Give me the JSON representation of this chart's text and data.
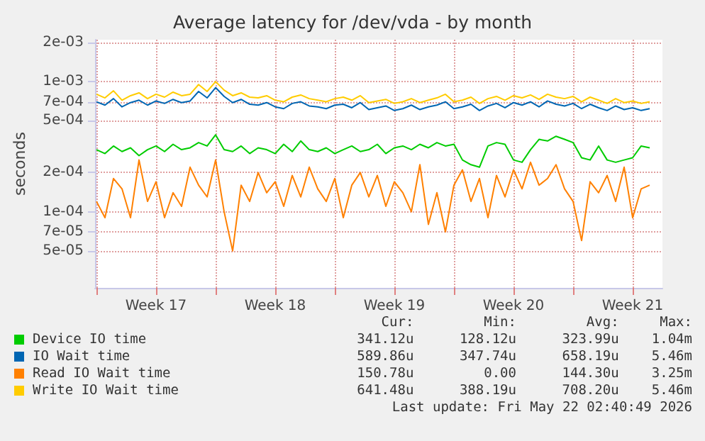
{
  "chart_data": {
    "type": "line",
    "title": "Average latency for /dev/vda - by month",
    "ylabel": "seconds",
    "x": [
      "2026-04-20T00:00",
      "2026-04-20T12:00",
      "2026-04-21T00:00",
      "2026-04-21T12:00",
      "2026-04-22T00:00",
      "2026-04-22T12:00",
      "2026-04-23T00:00",
      "2026-04-23T12:00",
      "2026-04-24T00:00",
      "2026-04-24T12:00",
      "2026-04-25T00:00",
      "2026-04-25T12:00",
      "2026-04-26T00:00",
      "2026-04-26T12:00",
      "2026-04-27T00:00",
      "2026-04-27T12:00",
      "2026-04-28T00:00",
      "2026-04-28T12:00",
      "2026-04-29T00:00",
      "2026-04-29T12:00",
      "2026-04-30T00:00",
      "2026-04-30T12:00",
      "2026-05-01T00:00",
      "2026-05-01T12:00",
      "2026-05-02T00:00",
      "2026-05-02T12:00",
      "2026-05-03T00:00",
      "2026-05-03T12:00",
      "2026-05-04T00:00",
      "2026-05-04T12:00",
      "2026-05-05T00:00",
      "2026-05-05T12:00",
      "2026-05-06T00:00",
      "2026-05-06T12:00",
      "2026-05-07T00:00",
      "2026-05-07T12:00",
      "2026-05-08T00:00",
      "2026-05-08T12:00",
      "2026-05-09T00:00",
      "2026-05-09T12:00",
      "2026-05-10T00:00",
      "2026-05-10T12:00",
      "2026-05-11T00:00",
      "2026-05-11T12:00",
      "2026-05-12T00:00",
      "2026-05-12T12:00",
      "2026-05-13T00:00",
      "2026-05-13T12:00",
      "2026-05-14T00:00",
      "2026-05-14T12:00",
      "2026-05-15T00:00",
      "2026-05-15T12:00",
      "2026-05-16T00:00",
      "2026-05-16T12:00",
      "2026-05-17T00:00",
      "2026-05-17T12:00",
      "2026-05-18T00:00",
      "2026-05-18T12:00",
      "2026-05-19T00:00",
      "2026-05-19T12:00",
      "2026-05-20T00:00",
      "2026-05-20T12:00",
      "2026-05-21T00:00",
      "2026-05-21T12:00",
      "2026-05-22T00:00",
      "2026-05-22T12:00"
    ],
    "series": [
      {
        "name": "Device IO time",
        "color": "#00cc00",
        "values": [
          0.0003,
          0.00028,
          0.00032,
          0.00029,
          0.00031,
          0.00027,
          0.0003,
          0.00032,
          0.00029,
          0.00033,
          0.0003,
          0.00031,
          0.00034,
          0.00032,
          0.00039,
          0.0003,
          0.00029,
          0.00032,
          0.00028,
          0.00031,
          0.0003,
          0.00028,
          0.00033,
          0.00029,
          0.00035,
          0.0003,
          0.00029,
          0.00031,
          0.00028,
          0.0003,
          0.00032,
          0.00029,
          0.0003,
          0.00033,
          0.00028,
          0.00031,
          0.00032,
          0.0003,
          0.00033,
          0.00031,
          0.00034,
          0.00032,
          0.00033,
          0.00025,
          0.00023,
          0.00022,
          0.00032,
          0.00034,
          0.00033,
          0.00025,
          0.00024,
          0.0003,
          0.00036,
          0.00035,
          0.00038,
          0.00036,
          0.00034,
          0.00026,
          0.00025,
          0.00032,
          0.00025,
          0.00024,
          0.00025,
          0.00026,
          0.00032,
          0.00031
        ]
      },
      {
        "name": "IO Wait time",
        "color": "#0066b3",
        "values": [
          0.0007,
          0.00066,
          0.00074,
          0.00064,
          0.00069,
          0.00072,
          0.00066,
          0.00071,
          0.00068,
          0.00073,
          0.00069,
          0.00071,
          0.00084,
          0.00075,
          0.0009,
          0.00077,
          0.00069,
          0.00073,
          0.00067,
          0.00066,
          0.00069,
          0.00064,
          0.00062,
          0.00068,
          0.0007,
          0.00065,
          0.00064,
          0.00062,
          0.00066,
          0.00067,
          0.00063,
          0.00069,
          0.00061,
          0.00063,
          0.00065,
          0.0006,
          0.00062,
          0.00066,
          0.00061,
          0.00064,
          0.00066,
          0.0007,
          0.00062,
          0.00064,
          0.00067,
          0.0006,
          0.00065,
          0.00068,
          0.00063,
          0.00069,
          0.00066,
          0.0007,
          0.00064,
          0.00071,
          0.00067,
          0.00065,
          0.00068,
          0.00062,
          0.00067,
          0.00063,
          0.0006,
          0.00065,
          0.00061,
          0.00063,
          0.0006,
          0.00062
        ]
      },
      {
        "name": "Read IO Wait time",
        "color": "#ff8000",
        "values": [
          0.00012,
          9e-05,
          0.00018,
          0.00015,
          9e-05,
          0.00025,
          0.00012,
          0.00017,
          9e-05,
          0.00014,
          0.00011,
          0.00022,
          0.00016,
          0.00013,
          0.00025,
          0.0001,
          5e-05,
          0.00016,
          0.00012,
          0.0002,
          0.00014,
          0.00017,
          0.00011,
          0.00019,
          0.00013,
          0.00022,
          0.00015,
          0.00012,
          0.00018,
          9e-05,
          0.00016,
          0.0002,
          0.00013,
          0.00019,
          0.00011,
          0.00017,
          0.00014,
          0.0001,
          0.00023,
          8e-05,
          0.00014,
          7e-05,
          0.00016,
          0.00021,
          0.00012,
          0.00018,
          9e-05,
          0.00019,
          0.00013,
          0.00021,
          0.00015,
          0.00024,
          0.00016,
          0.00018,
          0.00023,
          0.00015,
          0.00012,
          6e-05,
          0.00017,
          0.00014,
          0.00019,
          0.00012,
          0.00022,
          9e-05,
          0.00015,
          0.00016
        ]
      },
      {
        "name": "Write IO Wait time",
        "color": "#ffcc00",
        "values": [
          0.0008,
          0.00075,
          0.00085,
          0.00072,
          0.00078,
          0.00082,
          0.00074,
          0.0008,
          0.00076,
          0.00083,
          0.00078,
          0.0008,
          0.00095,
          0.00084,
          0.001,
          0.00086,
          0.00078,
          0.00082,
          0.00076,
          0.00075,
          0.00078,
          0.00072,
          0.0007,
          0.00076,
          0.00079,
          0.00074,
          0.00072,
          0.0007,
          0.00074,
          0.00076,
          0.00072,
          0.00078,
          0.00069,
          0.00071,
          0.00073,
          0.00068,
          0.0007,
          0.00074,
          0.00069,
          0.00072,
          0.00075,
          0.0008,
          0.0007,
          0.00072,
          0.00076,
          0.00068,
          0.00074,
          0.00077,
          0.00072,
          0.00078,
          0.00075,
          0.00079,
          0.00073,
          0.0008,
          0.00076,
          0.00074,
          0.00077,
          0.0007,
          0.00076,
          0.00072,
          0.00068,
          0.00074,
          0.00069,
          0.00071,
          0.00068,
          0.0007
        ]
      }
    ],
    "xlim": [
      "2026-04-19T22:00",
      "2026-05-23T06:00"
    ],
    "xticks": [
      {
        "value": "2026-04-20T00:00",
        "label": null
      },
      {
        "value": "2026-04-23T12:00",
        "label": "Week 17"
      },
      {
        "value": "2026-04-27T00:00",
        "label": null
      },
      {
        "value": "2026-04-30T12:00",
        "label": "Week 18"
      },
      {
        "value": "2026-05-04T00:00",
        "label": null
      },
      {
        "value": "2026-05-07T12:00",
        "label": "Week 19"
      },
      {
        "value": "2026-05-11T00:00",
        "label": null
      },
      {
        "value": "2026-05-14T12:00",
        "label": "Week 20"
      },
      {
        "value": "2026-05-18T00:00",
        "label": null
      },
      {
        "value": "2026-05-21T12:00",
        "label": "Week 21"
      }
    ],
    "ylim": [
      2.6e-05,
      0.0021
    ],
    "log": "y",
    "yticks": [
      {
        "value": 5e-05,
        "label": "5e-05"
      },
      {
        "value": 7e-05,
        "label": "7e-05"
      },
      {
        "value": 0.0001,
        "label": "1e-04"
      },
      {
        "value": 0.0002,
        "label": "2e-04"
      },
      {
        "value": 0.0005,
        "label": "5e-04"
      },
      {
        "value": 0.0007,
        "label": "7e-04"
      },
      {
        "value": 0.001,
        "label": "1e-03"
      },
      {
        "value": 0.002,
        "label": "2e-03"
      }
    ],
    "grid": true,
    "legend": "bottom",
    "marker": "none",
    "line_style": "solid",
    "annotations": [
      "Cur:",
      "Min:",
      "Avg:",
      "Max:",
      "341.12u",
      "128.12u",
      "323.99u",
      "1.04m",
      "589.86u",
      "347.74u",
      "658.19u",
      "5.46m",
      "150.78u",
      "0.00",
      "144.30u",
      "3.25m",
      "641.48u",
      "388.19u",
      "708.20u",
      "5.46m",
      "Last update: Fri May 22 02:40:49 2026"
    ]
  }
}
